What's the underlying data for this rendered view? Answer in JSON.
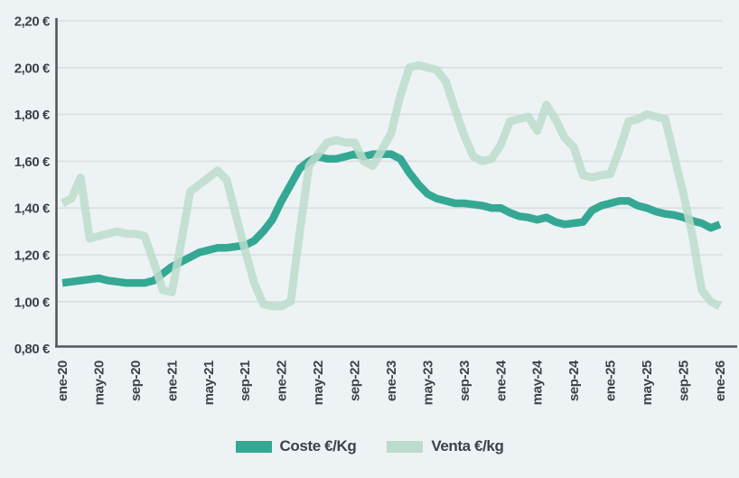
{
  "page": {
    "background_color": "#edf3f5",
    "gridline_color": "#d9dee1",
    "axis_color": "#53585c",
    "label_color": "#3c4347"
  },
  "chart_data": {
    "type": "line",
    "title": "",
    "xlabel": "",
    "ylabel": "",
    "ylim": [
      0.8,
      2.2
    ],
    "grid": "horizontal",
    "legend_position": "bottom",
    "x_unit": "month",
    "x_tick_every_months": 4,
    "x_tick_labels": [
      "ene-20",
      "may-20",
      "sep-20",
      "ene-21",
      "may-21",
      "sep-21",
      "ene-22",
      "may-22",
      "sep-22",
      "ene-23",
      "may-23",
      "sep-23",
      "ene-24",
      "may-24",
      "sep-24",
      "ene-25",
      "may-25",
      "sep-25",
      "ene-26"
    ],
    "y_tick_values": [
      2.2,
      2.0,
      1.8,
      1.6,
      1.4,
      1.2,
      1.0,
      0.8
    ],
    "y_tick_labels": [
      "2,20 €",
      "2,00 €",
      "1,80 €",
      "1,60 €",
      "1,40 €",
      "1,20 €",
      "1,00 €",
      "0,80 €"
    ],
    "series": [
      {
        "name": "Coste €/Kg",
        "color": "#35a894",
        "values": [
          1.08,
          1.085,
          1.09,
          1.095,
          1.1,
          1.09,
          1.085,
          1.08,
          1.08,
          1.08,
          1.09,
          1.12,
          1.15,
          1.17,
          1.19,
          1.21,
          1.22,
          1.23,
          1.23,
          1.235,
          1.24,
          1.26,
          1.3,
          1.35,
          1.43,
          1.5,
          1.57,
          1.6,
          1.62,
          1.61,
          1.61,
          1.62,
          1.63,
          1.62,
          1.63,
          1.63,
          1.63,
          1.61,
          1.55,
          1.5,
          1.46,
          1.44,
          1.43,
          1.42,
          1.42,
          1.415,
          1.41,
          1.4,
          1.4,
          1.38,
          1.365,
          1.36,
          1.35,
          1.36,
          1.34,
          1.33,
          1.335,
          1.34,
          1.39,
          1.41,
          1.42,
          1.43,
          1.43,
          1.41,
          1.4,
          1.385,
          1.375,
          1.37,
          1.36,
          1.345,
          1.335,
          1.315,
          1.33
        ]
      },
      {
        "name": "Venta €/kg",
        "color": "#bcdccd",
        "values": [
          1.42,
          1.44,
          1.53,
          1.27,
          1.28,
          1.29,
          1.3,
          1.29,
          1.29,
          1.28,
          1.17,
          1.05,
          1.04,
          1.25,
          1.47,
          1.5,
          1.53,
          1.56,
          1.52,
          1.37,
          1.22,
          1.08,
          0.99,
          0.98,
          0.98,
          1.0,
          1.3,
          1.58,
          1.63,
          1.68,
          1.69,
          1.68,
          1.68,
          1.6,
          1.58,
          1.65,
          1.72,
          1.88,
          2.0,
          2.01,
          2.0,
          1.99,
          1.94,
          1.82,
          1.71,
          1.62,
          1.6,
          1.61,
          1.67,
          1.77,
          1.78,
          1.79,
          1.73,
          1.84,
          1.78,
          1.7,
          1.66,
          1.54,
          1.53,
          1.54,
          1.545,
          1.65,
          1.77,
          1.78,
          1.8,
          1.79,
          1.78,
          1.62,
          1.46,
          1.28,
          1.05,
          1.0,
          0.98
        ]
      }
    ]
  },
  "legend": {
    "items": [
      {
        "label": "Coste €/Kg",
        "color": "#35a894"
      },
      {
        "label": "Venta €/kg",
        "color": "#bcdccd"
      }
    ]
  }
}
